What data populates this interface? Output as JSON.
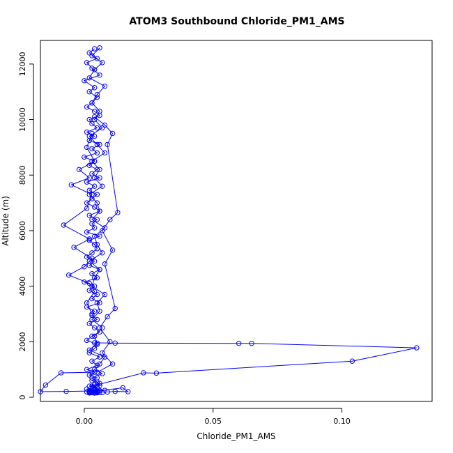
{
  "chart_data": {
    "type": "line",
    "title": "ATOM3 Southbound Chloride_PM1_AMS",
    "xlabel": "Chloride_PM1_AMS",
    "ylabel": "Altitude (m)",
    "xlim": [
      -0.017,
      0.135
    ],
    "ylim": [
      -150,
      12850
    ],
    "xticks": [
      0.0,
      0.05,
      0.1
    ],
    "xtick_labels": [
      "0.00",
      "0.05",
      "0.10"
    ],
    "yticks": [
      0,
      2000,
      4000,
      6000,
      8000,
      10000,
      12000
    ],
    "ytick_labels": [
      "0",
      "2000",
      "4000",
      "6000",
      "8000",
      "10000",
      "12000"
    ],
    "grid": false,
    "legend": "none",
    "series_color": "#0000ff",
    "series": [
      {
        "x": [
          0.004,
          0.002,
          0.005,
          0.001,
          0.003,
          0.006,
          0.0,
          0.004,
          0.002,
          0.005,
          0.003,
          0.001,
          0.004,
          0.006,
          0.002,
          0.003,
          0.005,
          0.001,
          0.004,
          0.002,
          0.006,
          0.003,
          0.005,
          0.0,
          0.004,
          0.002,
          0.005,
          0.003,
          0.006,
          0.001,
          0.004,
          0.002,
          0.005,
          0.003,
          0.001,
          0.004,
          0.006,
          0.002,
          0.005,
          0.003,
          0.004,
          0.001,
          0.006,
          0.002,
          0.004,
          0.005,
          0.003,
          0.001,
          0.004,
          0.002,
          0.006,
          0.003,
          0.005,
          0.0,
          0.004,
          0.002,
          0.005,
          0.003,
          0.006,
          0.001,
          0.004,
          0.003,
          0.005,
          0.002,
          0.004,
          0.006,
          0.003,
          0.001,
          0.005,
          0.004,
          0.002,
          0.006,
          0.003,
          0.005,
          0.001,
          0.004,
          0.002,
          0.005,
          0.003,
          0.006,
          0.004,
          0.002,
          0.005,
          0.001,
          0.004,
          0.003,
          0.006,
          0.002,
          0.005,
          0.004,
          0.003,
          0.001,
          0.005,
          0.004,
          0.002,
          0.006,
          0.003,
          0.005,
          0.002,
          0.004
        ],
        "y": [
          12550,
          12400,
          12200,
          12050,
          11850,
          11600,
          11400,
          11150,
          11000,
          10800,
          10600,
          10450,
          10300,
          10150,
          10000,
          9850,
          9700,
          9550,
          9400,
          9250,
          9100,
          8950,
          8800,
          8650,
          8500,
          8350,
          8200,
          8050,
          7900,
          7750,
          7600,
          7450,
          7300,
          7150,
          7000,
          6850,
          6700,
          6550,
          6400,
          6250,
          6100,
          5950,
          5800,
          5650,
          5500,
          5350,
          5200,
          5050,
          4900,
          4750,
          4600,
          4450,
          4300,
          4150,
          4000,
          3850,
          3700,
          3550,
          3400,
          3250,
          3100,
          2950,
          2800,
          2650,
          2500,
          2350,
          2200,
          2050,
          1900,
          1750,
          1600,
          1450,
          1300,
          1150,
          1000,
          900,
          800,
          700,
          600,
          500,
          450,
          400,
          350,
          300,
          280,
          260,
          240,
          220,
          210,
          200,
          195,
          190,
          185,
          180,
          175,
          170,
          165,
          160,
          155,
          150
        ]
      },
      {
        "x": [
          0.006,
          0.003,
          0.007,
          0.004,
          0.002,
          0.008,
          0.005,
          0.003,
          0.006,
          0.004,
          0.007,
          0.002,
          0.005,
          0.008,
          0.003,
          0.006,
          0.004,
          0.007,
          0.002,
          0.005,
          0.006,
          0.003,
          0.008,
          0.004,
          0.005,
          0.007,
          0.002,
          0.006,
          0.004,
          0.003,
          0.008,
          0.005,
          0.006,
          0.003,
          0.007,
          0.004,
          0.005,
          0.002,
          0.008,
          0.006,
          0.004,
          0.007,
          0.003,
          0.005,
          0.006,
          0.004,
          0.008,
          0.002,
          0.005,
          0.007
        ],
        "y": [
          12580,
          12300,
          12050,
          11800,
          11500,
          11200,
          10900,
          10600,
          10300,
          10000,
          9700,
          9400,
          9100,
          8800,
          8500,
          8200,
          7900,
          7600,
          7300,
          7000,
          6700,
          6400,
          6100,
          5800,
          5500,
          5200,
          4900,
          4600,
          4300,
          4000,
          3700,
          3400,
          3100,
          2800,
          2500,
          2200,
          1950,
          1700,
          1450,
          1200,
          1000,
          850,
          700,
          550,
          420,
          320,
          250,
          200,
          180,
          170
        ]
      },
      {
        "x": [
          0.003,
          0.001,
          0.004,
          -0.002,
          0.002,
          -0.005,
          0.003,
          0.001,
          -0.008,
          0.002,
          -0.004,
          0.003,
          0.0,
          -0.006,
          0.002,
          0.004,
          0.001,
          0.003
        ],
        "y": [
          9500,
          9000,
          8500,
          8200,
          7900,
          7650,
          7300,
          6800,
          6200,
          5700,
          5400,
          5000,
          4700,
          4400,
          4100,
          3800,
          3400,
          3000
        ]
      },
      {
        "x": [
          0.004,
          0.008,
          0.011,
          0.009,
          0.013,
          0.01,
          0.007,
          0.011,
          0.008,
          0.012,
          0.009,
          0.006,
          0.01,
          0.007,
          0.011,
          0.005
        ],
        "y": [
          10100,
          9800,
          9500,
          9100,
          6650,
          6400,
          6000,
          5300,
          4800,
          3200,
          2900,
          2500,
          2000,
          1600,
          1200,
          900
        ]
      },
      {
        "x": [
          0.004,
          0.012,
          0.06,
          0.065,
          0.129,
          0.104,
          0.028,
          0.023,
          0.003
        ],
        "y": [
          1960,
          1950,
          1940,
          1940,
          1780,
          1300,
          870,
          880,
          400
        ]
      },
      {
        "x": [
          0.003,
          -0.009,
          -0.015,
          -0.017,
          -0.007,
          0.005,
          0.015,
          0.017,
          0.012,
          0.009
        ],
        "y": [
          900,
          880,
          440,
          200,
          210,
          230,
          340,
          200,
          210,
          190
        ]
      }
    ]
  }
}
